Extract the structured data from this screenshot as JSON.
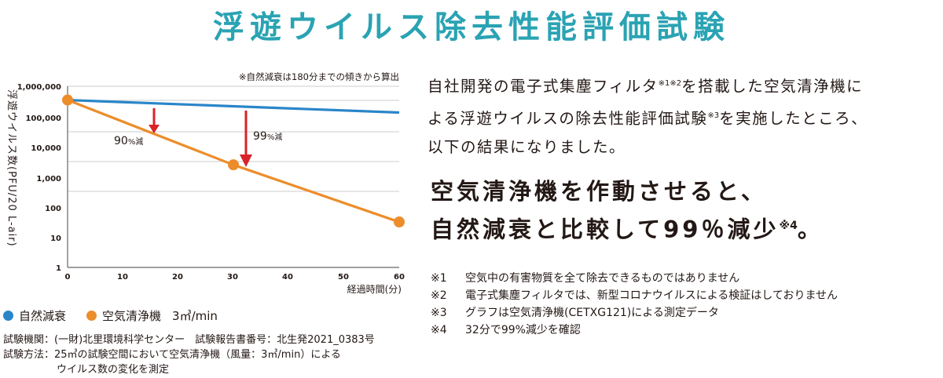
{
  "title": "浮遊ウイルス除去性能評価試験",
  "chart_data": {
    "type": "line",
    "note": "※自然減衰は180分までの傾きから算出",
    "ylabel": "浮遊ウイルス数(PFU/20 L-air)",
    "xlabel": "経過時間(分)",
    "y_scale": "log",
    "ylim": [
      1,
      1000000
    ],
    "xlim": [
      0,
      60
    ],
    "x_ticks": [
      "0",
      "10",
      "20",
      "30",
      "40",
      "50",
      "60"
    ],
    "y_ticks": [
      "1",
      "10",
      "100",
      "1,000",
      "10,000",
      "100,000",
      "1,000,000"
    ],
    "series": [
      {
        "name": "自然減衰",
        "color": "#2a86c8",
        "x": [
          0,
          60
        ],
        "y": [
          350000,
          135000
        ],
        "markers": false
      },
      {
        "name": "空気清浄機",
        "color": "#ec8d2b",
        "x": [
          0,
          30,
          60
        ],
        "y": [
          350000,
          2500,
          32
        ],
        "markers": true
      }
    ],
    "annotations": [
      {
        "label_main": "90",
        "label_unit": "%減"
      },
      {
        "label_main": "99",
        "label_unit": "%減"
      }
    ]
  },
  "legend": {
    "natural": "自然減衰",
    "purifier": "空気清浄機",
    "purifier_spec": "3㎥/min"
  },
  "info": {
    "line1": "試験機関：(一財)北里環境科学センター　試験報告書番号：北生発2021_0383号",
    "line2": "試験方法：25㎥の試験空間において空気清浄機（風量：3㎥/min）による",
    "line3": "ウイルス数の変化を測定"
  },
  "description": {
    "part1": "自社開発の電子式集塵フィルタ",
    "sup1": "※1※2",
    "part2": "を搭載した空気清浄機に",
    "part3": "よる浮遊ウイルスの除去性能評価試験",
    "sup2": "※3",
    "part4": "を実施したところ、",
    "part5": "以下の結果になりました。"
  },
  "headline": {
    "line1": "空気清浄機を作動させると、",
    "line2": "自然減衰と比較して99％減少",
    "sup": "※4",
    "end": "。"
  },
  "notes": [
    {
      "num": "※1",
      "text": "空気中の有害物質を全て除去できるものではありません"
    },
    {
      "num": "※2",
      "text": "電子式集塵フィルタでは、新型コロナウイルスによる検証はしておりません"
    },
    {
      "num": "※3",
      "text": "グラフは空気清浄機(CETXG121)による測定データ"
    },
    {
      "num": "※4",
      "text": "32分で99%減少を確認"
    }
  ],
  "colors": {
    "title": "#2aa3b3",
    "natural": "#2a86c8",
    "purifier": "#ec8d2b",
    "arrow": "#d8232a"
  }
}
